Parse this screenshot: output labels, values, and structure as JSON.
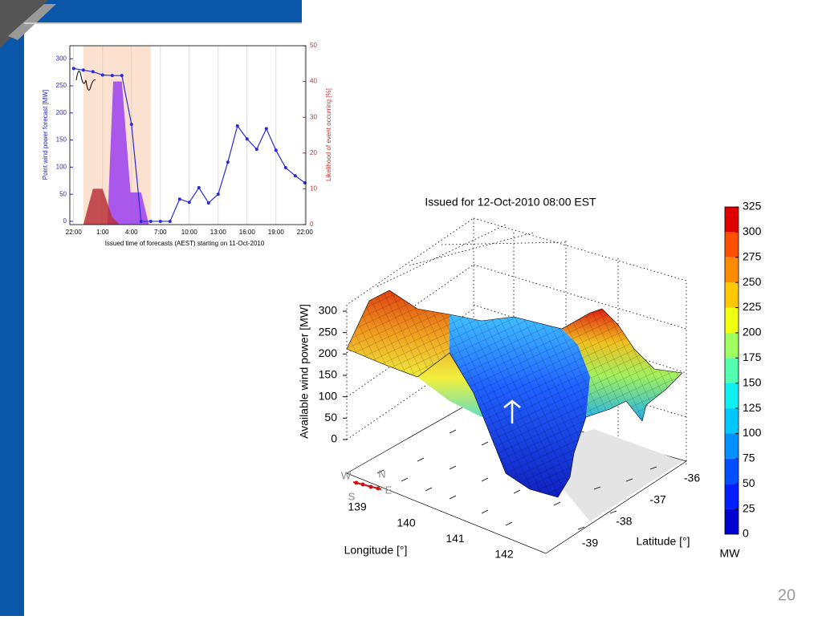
{
  "page_number": "20",
  "chart_data": [
    {
      "type": "line",
      "ylabel": "Point wind power forecast [MW]",
      "y2label": "Likelihood of event occurring [%]",
      "xlabel": "Issued time of forecasts (AEST) starting on 11-Oct-2010",
      "x": [
        0,
        1,
        2,
        3,
        4,
        5,
        6,
        7,
        8,
        9,
        10,
        11,
        12,
        13,
        14,
        15,
        16,
        17,
        18,
        19,
        20,
        21,
        22,
        23,
        24
      ],
      "xlim": [
        -0.4,
        24.1
      ],
      "xticks": [
        {
          "value": 0,
          "label": "22:00"
        },
        {
          "value": 3,
          "label": "1:00"
        },
        {
          "value": 6,
          "label": "4:00"
        },
        {
          "value": 9,
          "label": "7:00"
        },
        {
          "value": 12,
          "label": "10:00"
        },
        {
          "value": 15,
          "label": "13:00"
        },
        {
          "value": 18,
          "label": "16:00"
        },
        {
          "value": 21,
          "label": "19:00"
        },
        {
          "value": 24,
          "label": "22:00"
        }
      ],
      "ylim": [
        -6,
        324
      ],
      "yticks": [
        0,
        50,
        100,
        150,
        200,
        250,
        300
      ],
      "y2lim": [
        0,
        50
      ],
      "y2ticks": [
        0,
        10,
        20,
        30,
        40,
        50
      ],
      "highlight": [
        1,
        8
      ],
      "highlight_color": "#fbe2d0",
      "grid": true,
      "series": [
        {
          "color": "#2a2ad0",
          "values": [
            282,
            279,
            276,
            270,
            269,
            269,
            179,
            0,
            0,
            0,
            0,
            41,
            35,
            62,
            34,
            50,
            109,
            176,
            152,
            133,
            171,
            131,
            99,
            84,
            71
          ]
        },
        {
          "color": "#9b3ff0",
          "axis": "y2",
          "x": [
            3.5,
            4.1,
            5.0,
            5.9,
            7.0,
            7.8
          ],
          "values": [
            0,
            40,
            40,
            9,
            9,
            0
          ]
        },
        {
          "color": "#b8323a",
          "axis": "y2",
          "x": [
            1.0,
            2.0,
            3.0,
            4.0,
            4.8
          ],
          "values": [
            0,
            10,
            10,
            2,
            0
          ]
        }
      ]
    },
    {
      "type": "surface",
      "title": "Issued for 12-Oct-2010 08:00 EST",
      "zlabel": "Available wind power [MW]",
      "xlabel": "Longitude  [°]",
      "ylabel": "Latitude [°]",
      "xlim": [
        139,
        142
      ],
      "xticks": [
        139,
        140,
        141,
        142
      ],
      "ylim": [
        -39,
        -36
      ],
      "yticks": [
        -39,
        -38,
        -37,
        -36
      ],
      "zlim": [
        0,
        300
      ],
      "zticks": [
        0,
        50,
        100,
        150,
        200,
        250,
        300
      ],
      "compass": [
        "W",
        "N",
        "S",
        "E"
      ],
      "colorbar": {
        "label": "MW",
        "ticks": [
          0,
          25,
          50,
          75,
          100,
          125,
          150,
          175,
          200,
          225,
          250,
          275,
          300,
          325
        ],
        "colors": [
          "#0000d0",
          "#0020ff",
          "#0050ff",
          "#0090ff",
          "#00c8ff",
          "#10f0f0",
          "#50ffb0",
          "#a0ff60",
          "#f0ff10",
          "#ffc800",
          "#ff8c00",
          "#ff5000",
          "#e00000"
        ]
      }
    }
  ]
}
